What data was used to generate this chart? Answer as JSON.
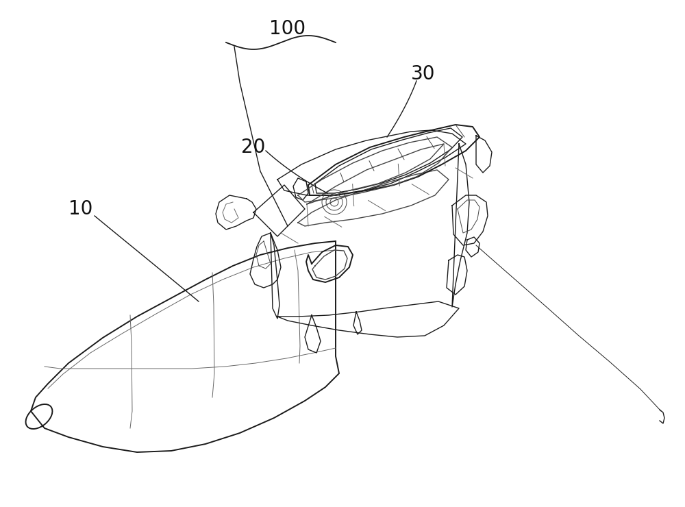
{
  "background_color": "#ffffff",
  "line_color": "#1a1a1a",
  "line_color_med": "#444444",
  "line_color_light": "#666666",
  "label_100": "100",
  "label_10": "10",
  "label_20": "20",
  "label_30": "30",
  "label_fontsize": 20,
  "label_color": "#111111",
  "fig_width": 10.0,
  "fig_height": 7.4,
  "dpi": 100
}
